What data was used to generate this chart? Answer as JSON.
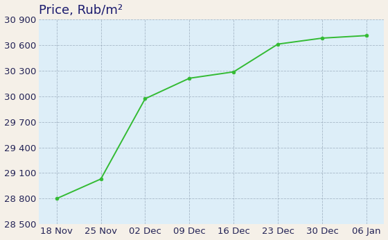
{
  "title": "Price, Rub/m²",
  "x_labels": [
    "18 Nov",
    "25 Nov",
    "02 Dec",
    "09 Dec",
    "16 Dec",
    "23 Dec",
    "30 Dec",
    "06 Jan"
  ],
  "y_values": [
    28800,
    29030,
    29970,
    30210,
    30285,
    30610,
    30680,
    30710
  ],
  "y_ticks": [
    28500,
    28800,
    29100,
    29400,
    29700,
    30000,
    30300,
    30600,
    30900
  ],
  "line_color": "#33bb33",
  "marker_color": "#33bb33",
  "plot_bg_color": "#ddeef8",
  "fig_bg_color": "#f5f0e8",
  "grid_color": "#99aabb",
  "title_color": "#1a1a6e",
  "tick_color": "#222255",
  "title_fontsize": 13,
  "tick_fontsize": 9.5
}
